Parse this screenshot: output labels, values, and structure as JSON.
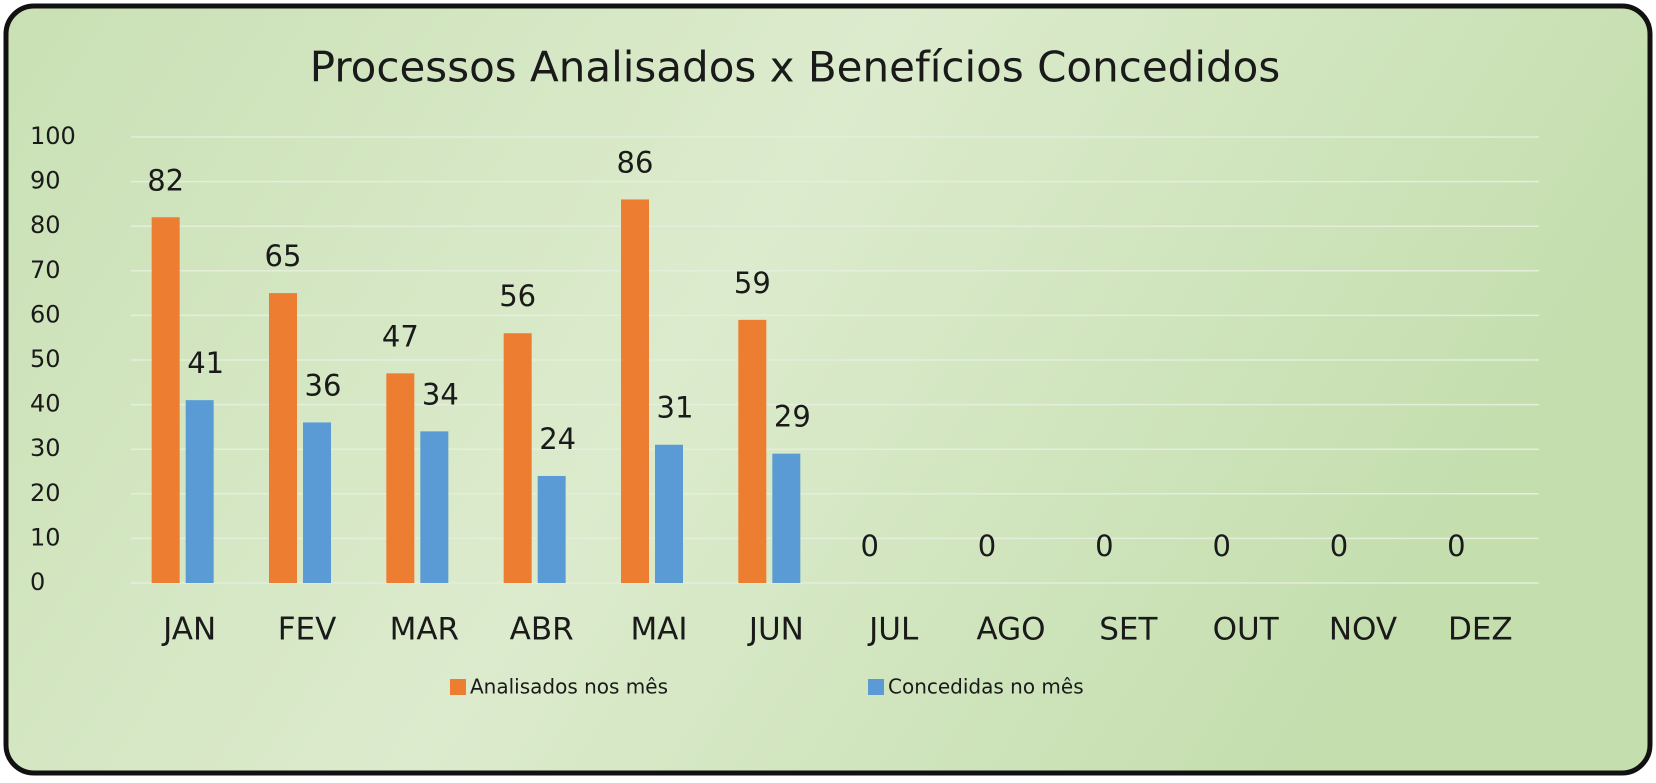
{
  "chart_data": {
    "type": "bar",
    "title": "Processos Analisados x Benefícios Concedidos",
    "categories": [
      "JAN",
      "FEV",
      "MAR",
      "ABR",
      "MAI",
      "JUN",
      "JUL",
      "AGO",
      "SET",
      "OUT",
      "NOV",
      "DEZ"
    ],
    "series": [
      {
        "name": "Analisados nos mês",
        "color": "#ed7d31",
        "values": [
          82,
          65,
          47,
          56,
          86,
          59,
          0,
          0,
          0,
          0,
          0,
          0
        ]
      },
      {
        "name": "Concedidas no mês",
        "color": "#5b9bd5",
        "values": [
          41,
          36,
          34,
          24,
          31,
          29,
          null,
          null,
          null,
          null,
          null,
          null
        ]
      }
    ],
    "ylim": [
      0,
      100
    ],
    "yticks": [
      0,
      10,
      20,
      30,
      40,
      50,
      60,
      70,
      80,
      90,
      100
    ],
    "grid": true,
    "legend": "bottom"
  }
}
